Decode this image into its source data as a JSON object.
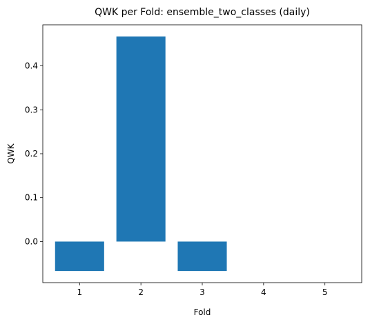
{
  "chart_data": {
    "type": "bar",
    "title": "QWK per Fold: ensemble_two_classes (daily)",
    "xlabel": "Fold",
    "ylabel": "QWK",
    "categories": [
      "1",
      "2",
      "3",
      "4",
      "5"
    ],
    "values": [
      -0.067,
      0.467,
      -0.067,
      0,
      0
    ],
    "ylim": [
      -0.0935,
      0.4935
    ],
    "yticks": [
      "0.0",
      "0.1",
      "0.2",
      "0.3",
      "0.4"
    ],
    "bar_color": "#1f77b4",
    "grid": false,
    "legend": "none"
  }
}
